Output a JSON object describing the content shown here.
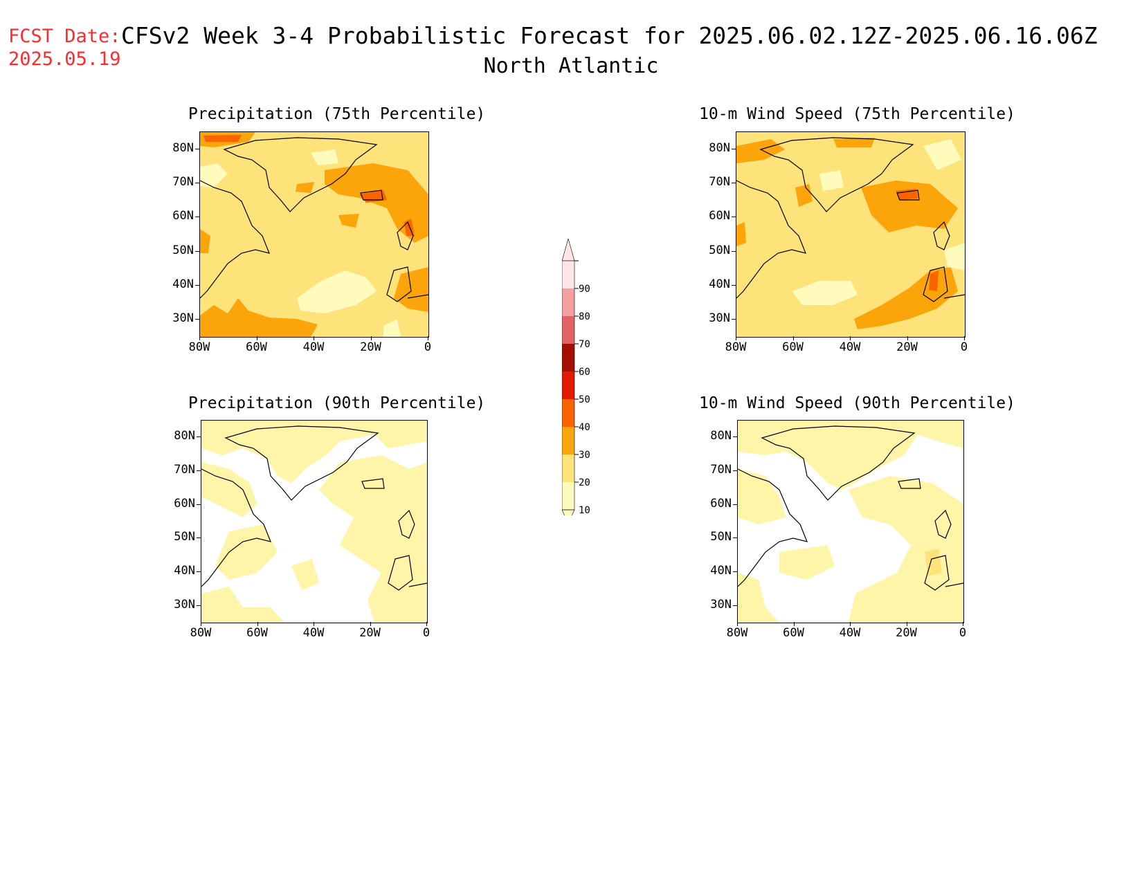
{
  "header": {
    "fcst_label": "FCST Date:",
    "fcst_date": "2025.05.19",
    "title": "CFSv2 Week 3-4 Probabilistic Forecast for 2025.06.02.12Z-2025.06.16.06Z",
    "region": "North Atlantic"
  },
  "panels": [
    {
      "title": "Precipitation (75th Percentile)"
    },
    {
      "title": "10-m Wind Speed (75th Percentile)"
    },
    {
      "title": "Precipitation (90th Percentile)"
    },
    {
      "title": "10-m Wind Speed (90th Percentile)"
    }
  ],
  "axes": {
    "lat_labels": [
      "80N",
      "70N",
      "60N",
      "50N",
      "40N",
      "30N"
    ],
    "lon_labels": [
      "80W",
      "60W",
      "40W",
      "20W",
      "0"
    ]
  },
  "colorbar": {
    "levels": [
      "10",
      "20",
      "30",
      "40",
      "50",
      "60",
      "70",
      "80",
      "90"
    ],
    "colors": [
      "#fffbbd",
      "#fee27a",
      "#fca50a",
      "#fa6400",
      "#e11a00",
      "#a50f00",
      "#e06464",
      "#f5a0a0",
      "#ffe6e6"
    ]
  }
}
